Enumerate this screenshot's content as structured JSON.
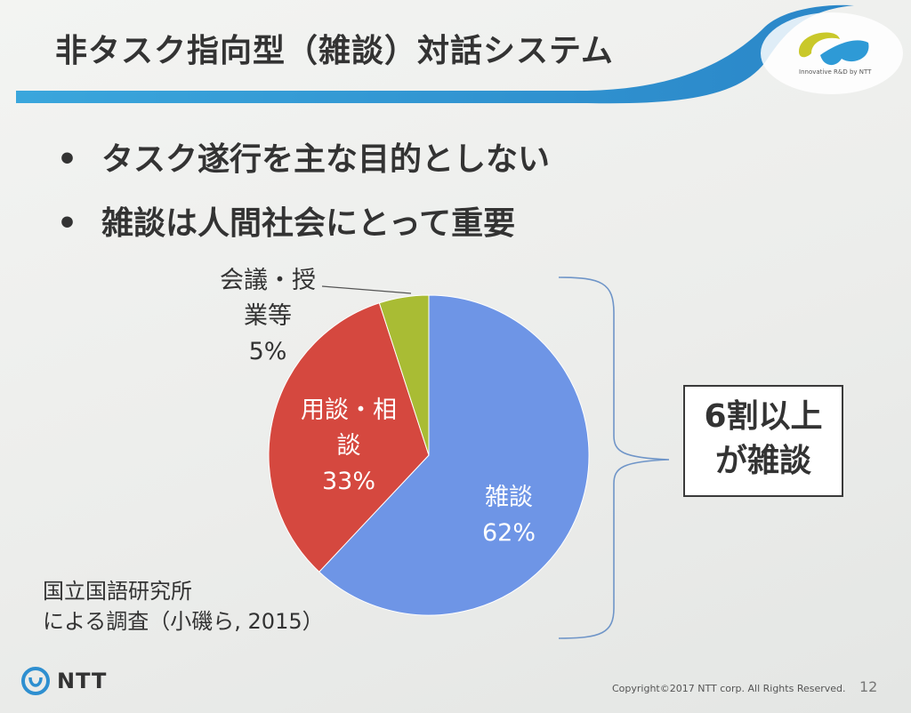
{
  "slide": {
    "title": "非タスク指向型（雑談）対話システム",
    "logo_tagline": "Innovative R&D by NTT",
    "bullets": [
      "タスク遂行を主な目的としない",
      "雑談は人間社会にとって重要"
    ],
    "bullet_marker": "•",
    "callout": [
      "6割以上",
      "が雑談"
    ],
    "source": [
      "国立国語研究所",
      "による調査（小磯ら, 2015）"
    ],
    "footer_logo": "NTT",
    "copyright": "Copyright©2017 NTT corp. All Rights Reserved.",
    "page_number": "12"
  },
  "chart_data": {
    "type": "pie",
    "title": "",
    "slices": [
      {
        "name_lines": [
          "雑談"
        ],
        "value": 62,
        "value_label": "62%",
        "color": "#6e95e6"
      },
      {
        "name_lines": [
          "用談・相",
          "談"
        ],
        "value": 33,
        "value_label": "33%",
        "color": "#d5483f"
      },
      {
        "name_lines": [
          "会議・授",
          "業等"
        ],
        "value": 5,
        "value_label": "5%",
        "color": "#a9bc34"
      }
    ],
    "start": "12 o'clock",
    "direction": "clockwise"
  },
  "colors": {
    "header_swoosh": "#2a9ad6",
    "callout_border": "#3a3a3a",
    "logo_yellow": "#c9c82a",
    "logo_blue": "#2e9ad6"
  },
  "icons": {
    "header_logo": "ntt-rd-swirl-icon",
    "footer_logo": "ntt-ring-icon"
  }
}
